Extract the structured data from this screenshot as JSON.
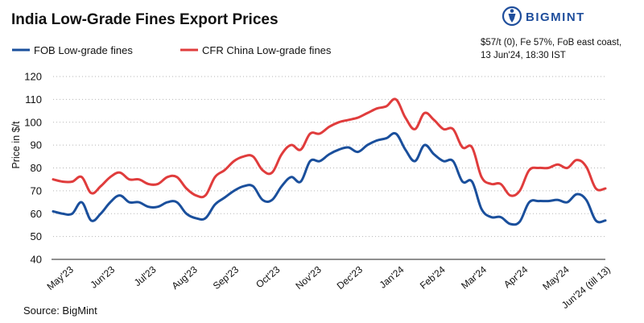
{
  "header": {
    "title": "India Low-Grade Fines Export Prices",
    "brand": "BIGMINT",
    "note_line1": "$57/t (0), Fe 57%, FoB east coast,",
    "note_line2": "13 Jun'24, 18:30 IST"
  },
  "footer": {
    "source": "Source: BigMint"
  },
  "colors": {
    "fob": "#1a4f9c",
    "cfr": "#e03c3c",
    "brand": "#1f4e9c"
  },
  "chart_data": {
    "type": "line",
    "ylabel": "Price in $/t",
    "xlabel": "",
    "ylim": [
      40,
      120
    ],
    "yticks": [
      40,
      50,
      60,
      70,
      80,
      90,
      100,
      110,
      120
    ],
    "grid": "horizontal-dotted",
    "legend": "top-left",
    "x_tick_labels": [
      "May'23",
      "Jun'23",
      "Jul'23",
      "Aug'23",
      "Sep'23",
      "Oct'23",
      "Nov'23",
      "Dec'23",
      "Jan'24",
      "Feb'24",
      "Mar'24",
      "Apr'24",
      "May'24",
      "Jun'24 (till 13)"
    ],
    "series": [
      {
        "name": "FOB Low-grade fines",
        "color": "#1a4f9c",
        "values": [
          61,
          60,
          60,
          65,
          57,
          60,
          65,
          68,
          65,
          65,
          63,
          63,
          65,
          65,
          60,
          58,
          58,
          64,
          67,
          70,
          72,
          72,
          66,
          66,
          72,
          76,
          74,
          83,
          83,
          86,
          88,
          89,
          87,
          90,
          92,
          93,
          95,
          88,
          83,
          90,
          86,
          83,
          83,
          74,
          74,
          62,
          58.5,
          58.5,
          55.5,
          56.5,
          65,
          65.5,
          65.5,
          66,
          65,
          68.5,
          66,
          57,
          57
        ]
      },
      {
        "name": "CFR China Low-grade fines",
        "color": "#e03c3c",
        "values": [
          75,
          74,
          74,
          76,
          69,
          72,
          76,
          78,
          75,
          75,
          73,
          73,
          76,
          76,
          71,
          68,
          68,
          76,
          79,
          83,
          85,
          85,
          79,
          78,
          86,
          90,
          88,
          95,
          95,
          98,
          100,
          101,
          102,
          104,
          106,
          107,
          110,
          102,
          97,
          104,
          101,
          97,
          97,
          89,
          89,
          76,
          73,
          73,
          68,
          70,
          79,
          80,
          80,
          81.5,
          80,
          83.5,
          80.5,
          71,
          71
        ]
      }
    ]
  }
}
